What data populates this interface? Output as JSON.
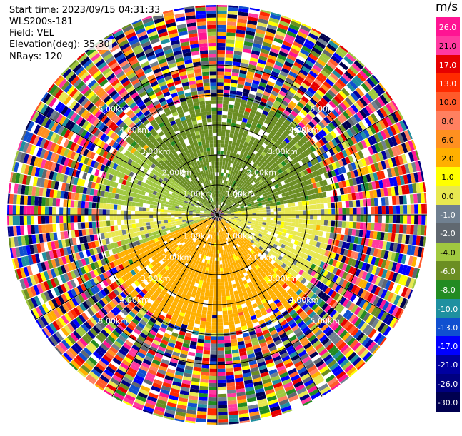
{
  "header": {
    "start_time": "Start time: 2023/09/15 04:31:33",
    "instrument": "WLS200s-181",
    "field": "Field: VEL",
    "elevation": "Elevation(deg): 35.30",
    "nrays": "NRays: 120"
  },
  "colorbar": {
    "unit": "m/s",
    "ticks": [
      "26.0",
      "21.0",
      "17.0",
      "13.0",
      "10.0",
      "8.0",
      "6.0",
      "2.0",
      "1.0",
      "0.0",
      "-1.0",
      "-2.0",
      "-4.0",
      "-6.0",
      "-8.0",
      "-10.0",
      "-13.0",
      "-17.0",
      "-21.0",
      "-26.0",
      "-30.0"
    ],
    "colors": [
      "#ff1493",
      "#ff3aa0",
      "#e60000",
      "#ff2a00",
      "#ff5a2a",
      "#ff8060",
      "#ff9020",
      "#ffb000",
      "#ffff00",
      "#e8e850",
      "#708090",
      "#606870",
      "#a0c840",
      "#6b8e23",
      "#228b22",
      "#1e90a0",
      "#1050d0",
      "#0000ff",
      "#0000a0",
      "#000080",
      "#000050"
    ]
  },
  "chart_data": {
    "type": "heatmap",
    "projection": "polar PPI",
    "variable": "VEL",
    "unit": "m/s",
    "vmin": -30.0,
    "vmax": 30.0,
    "n_rays": 120,
    "range_rings_km": [
      1.0,
      2.0,
      3.0,
      4.0,
      5.0
    ],
    "range_ring_labels": [
      "1.00km",
      "2.00km",
      "3.00km",
      "4.00km",
      "5.00km"
    ],
    "max_range_km": 7.0,
    "spokes_deg": [
      0,
      30,
      60,
      90,
      120,
      150,
      180,
      210,
      240,
      270,
      300,
      330
    ],
    "regions": [
      {
        "description": "north to northeast, inner",
        "az_from": 310,
        "az_to": 80,
        "range_km": [
          0.2,
          4.0
        ],
        "velocity": -5.0
      },
      {
        "description": "west to northwest",
        "az_from": 250,
        "az_to": 310,
        "range_km": [
          0.2,
          4.0
        ],
        "velocity": -2.5
      },
      {
        "description": "west band",
        "az_from": 255,
        "az_to": 275,
        "range_km": [
          0.2,
          4.0
        ],
        "velocity": 0.0
      },
      {
        "description": "east to southeast",
        "az_from": 80,
        "az_to": 130,
        "range_km": [
          0.2,
          3.8
        ],
        "velocity": 0.0
      },
      {
        "description": "south",
        "az_from": 130,
        "az_to": 250,
        "range_km": [
          0.2,
          4.0
        ],
        "velocity": 3.0
      }
    ],
    "outer_ranges": "noise beyond ~4 km, all values"
  }
}
